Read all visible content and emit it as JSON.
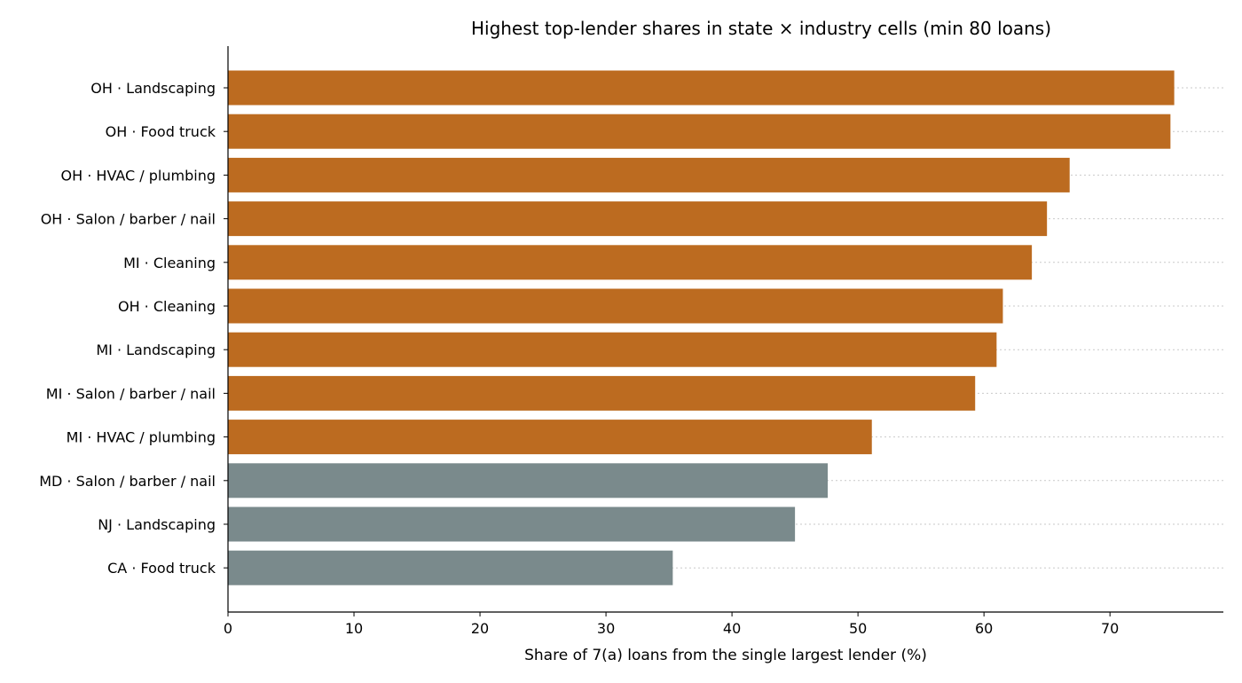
{
  "chart_data": {
    "type": "bar",
    "orientation": "horizontal",
    "title": "Highest top-lender shares in state × industry cells (min 80 loans)",
    "xlabel": "Share of 7(a) loans from the single largest lender (%)",
    "ylabel": "",
    "xlim": [
      0,
      79
    ],
    "xticks": [
      0,
      10,
      20,
      30,
      40,
      50,
      60,
      70
    ],
    "grid": "horizontal dotted",
    "categories": [
      "OH · Landscaping",
      "OH · Food truck",
      "OH · HVAC / plumbing",
      "OH · Salon / barber / nail",
      "MI · Cleaning",
      "OH · Cleaning",
      "MI · Landscaping",
      "MI · Salon / barber / nail",
      "MI · HVAC / plumbing",
      "MD · Salon / barber / nail",
      "NJ · Landscaping",
      "CA · Food truck"
    ],
    "values": [
      75.1,
      74.8,
      66.8,
      65.0,
      63.8,
      61.5,
      61.0,
      59.3,
      51.1,
      47.6,
      45.0,
      35.3
    ],
    "bar_colors": [
      "#bc6b20",
      "#bc6b20",
      "#bc6b20",
      "#bc6b20",
      "#bc6b20",
      "#bc6b20",
      "#bc6b20",
      "#bc6b20",
      "#bc6b20",
      "#7a8a8c",
      "#7a8a8c",
      "#7a8a8c"
    ]
  }
}
